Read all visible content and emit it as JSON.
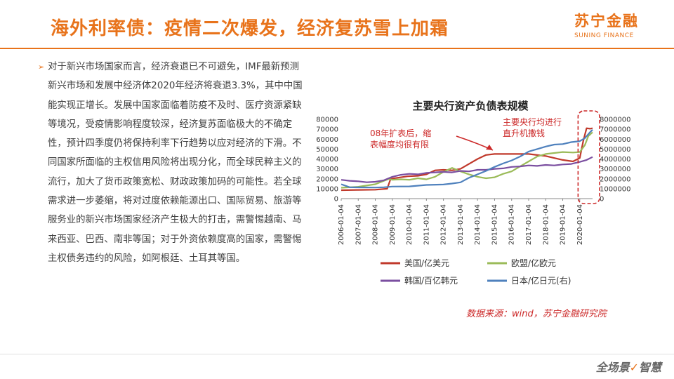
{
  "slide": {
    "title": "海外利率债：疫情二次爆发，经济复苏雪上加霜",
    "logo_cn": "苏宁金融",
    "logo_en": "SUNING FINANCE",
    "bullet_text": "对于新兴市场国家而言，经济衰退已不可避免，IMF最新预测新兴市场和发展中经济体2020年经济将衰退3.3%，其中中国能实现正增长。发展中国家面临着防疫不及时、医疗资源紧缺等境况，受疫情影响程度较深，经济复苏面临极大的不确定性，预计四季度仍将保持利率下行趋势以应对经济的下滑。不同国家所面临的主权信用风险将出现分化，而全球民粹主义的流行，加大了货币政策宽松、财政政策加码的可能性。若全球需求进一步萎缩，将对过度依赖能源出口、国际贸易、旅游等服务业的新兴市场国家经济产生极大的打击，需警惕越南、马来西亚、巴西、南非等国；对于外资依赖度高的国家，需警惕主权债务违约的风险，如阿根廷、土耳其等国。",
    "source": "数据来源：wind，苏宁金融研究院",
    "footer_slogan": "全场景",
    "footer_slogan_b": "智慧",
    "accent_color": "#e8731b"
  },
  "chart_data": {
    "type": "line",
    "title": "主要央行资产负债表规模",
    "x_ticks": [
      "2006-01-04",
      "2007-01-04",
      "2008-01-04",
      "2009-01-04",
      "2010-01-04",
      "2011-01-04",
      "2012-01-04",
      "2013-01-04",
      "2014-01-04",
      "2015-01-04",
      "2016-01-04",
      "2017-01-04",
      "2018-01-04",
      "2019-01-04",
      "2020-01-04"
    ],
    "x_range": [
      2006.0,
      2020.75
    ],
    "y_left": {
      "range": [
        0,
        80000
      ],
      "ticks": [
        "0",
        "10000",
        "20000",
        "30000",
        "40000",
        "50000",
        "60000",
        "70000",
        "80000"
      ]
    },
    "y_right": {
      "range": [
        0,
        8000000
      ],
      "ticks": [
        "0",
        "1000000",
        "2000000",
        "3000000",
        "4000000",
        "5000000",
        "6000000",
        "7000000",
        "8000000"
      ]
    },
    "series": [
      {
        "name": "美国/亿美元",
        "color": "#c0392b",
        "axis": "left",
        "points": [
          [
            2006.0,
            8500
          ],
          [
            2007.0,
            8800
          ],
          [
            2008.0,
            9000
          ],
          [
            2008.7,
            10000
          ],
          [
            2008.9,
            20000
          ],
          [
            2009.3,
            21000
          ],
          [
            2009.9,
            22500
          ],
          [
            2010.5,
            23000
          ],
          [
            2011.0,
            24500
          ],
          [
            2011.5,
            28500
          ],
          [
            2012.0,
            29000
          ],
          [
            2012.5,
            28500
          ],
          [
            2013.0,
            30000
          ],
          [
            2013.5,
            35000
          ],
          [
            2014.0,
            40000
          ],
          [
            2014.5,
            44000
          ],
          [
            2015.0,
            45000
          ],
          [
            2016.0,
            45000
          ],
          [
            2017.0,
            45000
          ],
          [
            2018.0,
            43000
          ],
          [
            2019.0,
            39000
          ],
          [
            2019.6,
            37500
          ],
          [
            2020.0,
            41000
          ],
          [
            2020.2,
            58000
          ],
          [
            2020.4,
            71000
          ],
          [
            2020.6,
            70500
          ],
          [
            2020.75,
            71000
          ]
        ]
      },
      {
        "name": "欧盟/亿欧元",
        "color": "#9bbb59",
        "axis": "left",
        "points": [
          [
            2006.0,
            11000
          ],
          [
            2007.0,
            12000
          ],
          [
            2008.0,
            14500
          ],
          [
            2008.8,
            20000
          ],
          [
            2009.0,
            19000
          ],
          [
            2009.5,
            19500
          ],
          [
            2010.0,
            19000
          ],
          [
            2010.5,
            20500
          ],
          [
            2011.0,
            19500
          ],
          [
            2011.5,
            22000
          ],
          [
            2012.0,
            27000
          ],
          [
            2012.5,
            31000
          ],
          [
            2013.0,
            27500
          ],
          [
            2013.5,
            24500
          ],
          [
            2014.0,
            22000
          ],
          [
            2014.5,
            20500
          ],
          [
            2015.0,
            21500
          ],
          [
            2015.5,
            25000
          ],
          [
            2016.0,
            27500
          ],
          [
            2016.5,
            32500
          ],
          [
            2017.0,
            37500
          ],
          [
            2017.5,
            42500
          ],
          [
            2018.0,
            45000
          ],
          [
            2018.5,
            46000
          ],
          [
            2019.0,
            47000
          ],
          [
            2019.6,
            46500
          ],
          [
            2020.0,
            47000
          ],
          [
            2020.3,
            54000
          ],
          [
            2020.5,
            63000
          ],
          [
            2020.75,
            67000
          ]
        ]
      },
      {
        "name": "韩国/百亿韩元",
        "color": "#7b4fa0",
        "axis": "left",
        "points": [
          [
            2006.0,
            19000
          ],
          [
            2006.5,
            18000
          ],
          [
            2007.0,
            17500
          ],
          [
            2007.5,
            16500
          ],
          [
            2008.0,
            17000
          ],
          [
            2008.5,
            18500
          ],
          [
            2009.0,
            22000
          ],
          [
            2009.5,
            24000
          ],
          [
            2010.0,
            25000
          ],
          [
            2010.5,
            24500
          ],
          [
            2011.0,
            26000
          ],
          [
            2011.5,
            26500
          ],
          [
            2012.0,
            27000
          ],
          [
            2012.5,
            26500
          ],
          [
            2013.0,
            28000
          ],
          [
            2013.5,
            27500
          ],
          [
            2014.0,
            29000
          ],
          [
            2014.5,
            29000
          ],
          [
            2015.0,
            30000
          ],
          [
            2015.5,
            30500
          ],
          [
            2016.0,
            32000
          ],
          [
            2016.5,
            32500
          ],
          [
            2017.0,
            33500
          ],
          [
            2017.5,
            33000
          ],
          [
            2018.0,
            34000
          ],
          [
            2018.5,
            33500
          ],
          [
            2019.0,
            34500
          ],
          [
            2019.5,
            35000
          ],
          [
            2020.0,
            37000
          ],
          [
            2020.4,
            39000
          ],
          [
            2020.75,
            42000
          ]
        ]
      },
      {
        "name": "日本/亿日元(右)",
        "color": "#4f81bd",
        "axis": "right",
        "points": [
          [
            2006.0,
            1450000
          ],
          [
            2006.5,
            1150000
          ],
          [
            2007.0,
            1130000
          ],
          [
            2008.0,
            1120000
          ],
          [
            2008.5,
            1150000
          ],
          [
            2009.0,
            1220000
          ],
          [
            2010.0,
            1230000
          ],
          [
            2011.0,
            1380000
          ],
          [
            2012.0,
            1420000
          ],
          [
            2012.5,
            1520000
          ],
          [
            2013.0,
            1640000
          ],
          [
            2013.5,
            2100000
          ],
          [
            2014.0,
            2450000
          ],
          [
            2014.5,
            2800000
          ],
          [
            2015.0,
            3200000
          ],
          [
            2015.5,
            3550000
          ],
          [
            2016.0,
            3850000
          ],
          [
            2016.5,
            4250000
          ],
          [
            2017.0,
            4750000
          ],
          [
            2017.5,
            5000000
          ],
          [
            2018.0,
            5250000
          ],
          [
            2018.5,
            5450000
          ],
          [
            2019.0,
            5500000
          ],
          [
            2019.5,
            5700000
          ],
          [
            2020.0,
            5800000
          ],
          [
            2020.3,
            6100000
          ],
          [
            2020.6,
            6700000
          ],
          [
            2020.75,
            6950000
          ]
        ]
      }
    ],
    "annotations": [
      {
        "id": "qe",
        "line1": "08年扩表后，缩",
        "line2": "表幅度均很有限",
        "color": "#cc2929"
      },
      {
        "id": "expand",
        "line1": "主要央行均进行",
        "line2": "直升机撒钱",
        "color": "#cc2929"
      }
    ],
    "highlight_range": [
      2019.9,
      2020.75
    ],
    "legend_position": "bottom"
  }
}
